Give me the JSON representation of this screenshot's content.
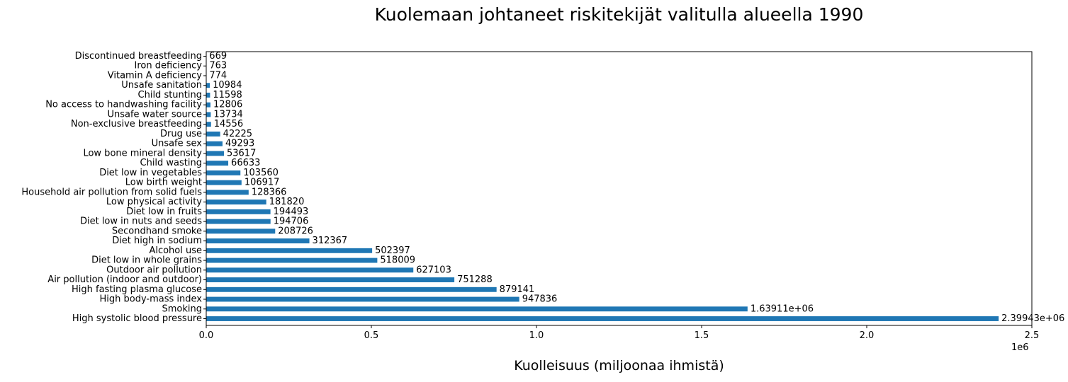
{
  "chart_data": {
    "type": "bar",
    "orientation": "horizontal",
    "title": "Kuolemaan johtaneet riskitekijät valitulla alueella 1990",
    "xlabel": "Kuolleisuus (miljoonaa ihmistä)",
    "ylabel": "",
    "x_offset_label": "1e6",
    "xlim": [
      0,
      2500000
    ],
    "xticks": [
      0,
      500000,
      1000000,
      1500000,
      2000000,
      2500000
    ],
    "xtick_labels": [
      "0.0",
      "0.5",
      "1.0",
      "1.5",
      "2.0",
      "2.5"
    ],
    "grid": false,
    "bar_color": "#1f77b4",
    "categories": [
      "High systolic blood pressure",
      "Smoking",
      "High body-mass index",
      "High fasting plasma glucose",
      "Air pollution (indoor and outdoor)",
      "Outdoor air pollution",
      "Diet low in whole grains",
      "Alcohol use",
      "Diet high in sodium",
      "Secondhand smoke",
      "Diet low in nuts and seeds",
      "Diet low in fruits",
      "Low physical activity",
      "Household air pollution from solid fuels",
      "Low birth weight",
      "Diet low in vegetables",
      "Child wasting",
      "Low bone mineral density",
      "Unsafe sex",
      "Drug use",
      "Non-exclusive breastfeeding",
      "Unsafe water source",
      "No access to handwashing facility",
      "Child stunting",
      "Unsafe sanitation",
      "Vitamin A deficiency",
      "Iron deficiency",
      "Discontinued breastfeeding"
    ],
    "values": [
      2399430,
      1639110,
      947836,
      879141,
      751288,
      627103,
      518009,
      502397,
      312367,
      208726,
      194706,
      194493,
      181820,
      128366,
      106917,
      103560,
      66633,
      53617,
      49293,
      42225,
      14556,
      13734,
      12806,
      11598,
      10984,
      774,
      763,
      669
    ],
    "value_labels": [
      "2.39943e+06",
      "1.63911e+06",
      "947836",
      "879141",
      "751288",
      "627103",
      "518009",
      "502397",
      "312367",
      "208726",
      "194706",
      "194493",
      "181820",
      "128366",
      "106917",
      "103560",
      "66633",
      "53617",
      "49293",
      "42225",
      "14556",
      "13734",
      "12806",
      "11598",
      "10984",
      "774",
      "763",
      "669"
    ]
  }
}
